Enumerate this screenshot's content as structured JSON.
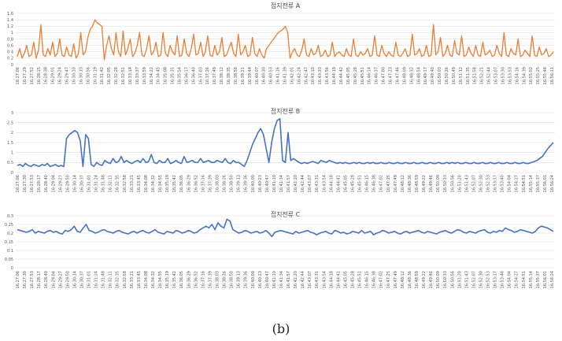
{
  "caption": "(b)",
  "chart_data": [
    {
      "type": "line",
      "title": "접지전류 A",
      "color": "#ED7D31",
      "ylim": [
        0,
        1.6
      ],
      "yticks": [
        "0",
        "0.2",
        "0.4",
        "0.6",
        "0.8",
        "1",
        "1.2",
        "1.4",
        "1.6"
      ],
      "grid": true,
      "x_ticks": [
        "16:27:06",
        "16:27:29",
        "16:27:52",
        "16:28:15",
        "16:28:38",
        "16:29:01",
        "16:29:24",
        "16:29:47",
        "16:30:10",
        "16:30:33",
        "16:30:56",
        "16:31:19",
        "16:31:42",
        "16:32:05",
        "16:32:28",
        "16:32:51",
        "16:33:14",
        "16:33:37",
        "16:33:59",
        "16:34:22",
        "16:34:45",
        "16:35:08",
        "16:35:31",
        "16:35:54",
        "16:36:17",
        "16:36:40",
        "16:37:03",
        "16:37:26",
        "16:37:49",
        "16:38:12",
        "16:38:35",
        "16:38:58",
        "16:39:21",
        "16:39:44",
        "16:40:07",
        "16:40:30",
        "16:40:53",
        "16:41:16",
        "16:41:39",
        "16:42:01",
        "16:42:24",
        "16:42:47",
        "16:43:10",
        "16:43:33",
        "16:43:56",
        "16:44:19",
        "16:44:42",
        "16:45:05",
        "16:45:28",
        "16:45:51",
        "16:46:14",
        "16:46:37",
        "16:47:00",
        "16:47:23",
        "16:47:46",
        "16:48:09",
        "16:48:32",
        "16:48:54",
        "16:49:17",
        "16:49:40",
        "16:50:03",
        "16:50:26",
        "16:50:49",
        "16:51:12",
        "16:51:35",
        "16:51:58",
        "16:52:21",
        "16:52:44",
        "16:53:07",
        "16:53:30",
        "16:53:53",
        "16:54:16",
        "16:54:39",
        "16:55:02",
        "16:55:25",
        "16:55:48",
        "16:56:11"
      ],
      "series": [
        {
          "values": [
            0.25,
            0.5,
            0.2,
            0.35,
            0.6,
            0.25,
            0.3,
            0.7,
            0.2,
            0.45,
            1.25,
            0.3,
            0.25,
            0.5,
            0.3,
            0.7,
            0.25,
            0.35,
            0.8,
            0.3,
            0.25,
            0.55,
            0.3,
            0.25,
            0.65,
            0.2,
            0.35,
            1.0,
            0.3,
            0.4,
            0.85,
            1.1,
            1.2,
            1.4,
            1.3,
            1.25,
            1.2,
            0.15,
            0.6,
            0.9,
            0.5,
            0.3,
            1.0,
            0.4,
            0.25,
            1.05,
            0.3,
            0.5,
            0.8,
            0.25,
            0.35,
            0.6,
            1.0,
            0.3,
            0.25,
            0.5,
            0.9,
            0.3,
            0.4,
            0.7,
            0.25,
            0.3,
            1.0,
            0.35,
            0.25,
            0.6,
            0.4,
            0.3,
            0.9,
            0.25,
            0.3,
            0.8,
            0.35,
            0.25,
            0.5,
            0.95,
            0.3,
            0.35,
            0.7,
            0.25,
            0.4,
            0.9,
            0.3,
            0.25,
            0.6,
            0.3,
            0.4,
            0.85,
            0.25,
            0.3,
            0.5,
            0.7,
            0.35,
            0.25,
            0.95,
            0.3,
            0.4,
            0.6,
            0.25,
            0.3,
            0.85,
            0.35,
            0.25,
            0.5,
            0.3,
            0.2,
            0.5,
            0.6,
            0.7,
            0.8,
            0.9,
            1.0,
            1.05,
            1.1,
            1.2,
            1.0,
            0.2,
            0.4,
            0.5,
            0.3,
            0.25,
            0.45,
            0.8,
            0.3,
            0.25,
            0.5,
            0.3,
            0.35,
            0.6,
            0.25,
            0.3,
            0.45,
            0.25,
            0.3,
            0.7,
            0.25,
            0.35,
            0.4,
            0.3,
            0.25,
            0.5,
            0.3,
            0.25,
            0.8,
            0.3,
            0.25,
            0.4,
            0.3,
            0.35,
            0.5,
            0.25,
            0.3,
            0.9,
            0.3,
            0.25,
            0.6,
            0.35,
            0.25,
            0.4,
            0.3,
            0.25,
            0.7,
            0.3,
            0.25,
            0.35,
            0.5,
            0.25,
            0.3,
            0.95,
            0.3,
            0.35,
            0.5,
            0.25,
            0.3,
            0.6,
            0.25,
            0.3,
            1.25,
            0.3,
            0.4,
            0.85,
            0.25,
            0.35,
            0.6,
            0.3,
            0.25,
            0.75,
            0.35,
            0.3,
            0.9,
            0.25,
            0.3,
            0.55,
            0.35,
            0.25,
            0.6,
            0.3,
            0.25,
            0.7,
            0.3,
            0.35,
            0.45,
            0.25,
            0.3,
            0.6,
            0.35,
            0.25,
            1.0,
            0.3,
            0.25,
            0.5,
            0.35,
            0.3,
            0.8,
            0.25,
            0.3,
            0.45,
            0.35,
            0.25,
            0.9,
            0.3,
            0.25,
            0.55,
            0.3,
            0.35,
            0.5,
            0.25,
            0.3,
            0.4
          ]
        }
      ]
    },
    {
      "type": "line",
      "title": "접지전류 B",
      "color": "#4472C4",
      "ylim": [
        0,
        3
      ],
      "yticks": [
        "0",
        "0.5",
        "1",
        "1.5",
        "2",
        "2.5",
        "3"
      ],
      "grid": true,
      "x_ticks": [
        "16:27:06",
        "16:27:30",
        "16:27:53",
        "16:28:17",
        "16:28:40",
        "16:29:04",
        "16:29:27",
        "16:29:50",
        "16:30:14",
        "16:30:37",
        "16:31:01",
        "16:31:24",
        "16:31:48",
        "16:32:11",
        "16:32:35",
        "16:32:58",
        "16:33:21",
        "16:33:45",
        "16:34:08",
        "16:34:32",
        "16:34:55",
        "16:35:19",
        "16:35:42",
        "16:36:05",
        "16:36:29",
        "16:36:52",
        "16:37:16",
        "16:37:39",
        "16:38:03",
        "16:38:26",
        "16:38:50",
        "16:39:13",
        "16:39:36",
        "16:40:00",
        "16:40:23",
        "16:40:47",
        "16:41:10",
        "16:41:34",
        "16:41:57",
        "16:42:20",
        "16:42:44",
        "16:43:07",
        "16:43:31",
        "16:43:54",
        "16:44:18",
        "16:44:41",
        "16:45:05",
        "16:45:28",
        "16:45:51",
        "16:46:15",
        "16:46:38",
        "16:47:02",
        "16:47:25",
        "16:47:49",
        "16:48:12",
        "16:48:36",
        "16:48:59",
        "16:49:22",
        "16:49:46",
        "16:50:09",
        "16:50:33",
        "16:50:56",
        "16:51:20",
        "16:51:43",
        "16:52:07",
        "16:52:30",
        "16:52:53",
        "16:53:17",
        "16:53:40",
        "16:54:04",
        "16:54:27",
        "16:54:51",
        "16:55:14",
        "16:55:37",
        "16:56:01",
        "16:56:24"
      ],
      "series": [
        {
          "values": [
            0.35,
            0.4,
            0.3,
            0.45,
            0.35,
            0.3,
            0.4,
            0.35,
            0.3,
            0.4,
            0.35,
            0.45,
            0.3,
            0.35,
            0.4,
            0.3,
            0.35,
            0.3,
            1.7,
            1.9,
            2.0,
            2.1,
            2.0,
            1.6,
            0.3,
            1.9,
            1.7,
            0.4,
            0.3,
            0.5,
            0.4,
            0.35,
            0.6,
            0.5,
            0.45,
            0.7,
            0.5,
            0.55,
            0.8,
            0.5,
            0.6,
            0.5,
            0.45,
            0.55,
            0.6,
            0.5,
            0.7,
            0.5,
            0.55,
            0.9,
            0.5,
            0.45,
            0.6,
            0.5,
            0.5,
            0.7,
            0.45,
            0.5,
            0.6,
            0.5,
            0.45,
            0.8,
            0.5,
            0.55,
            0.6,
            0.5,
            0.5,
            0.7,
            0.5,
            0.55,
            0.6,
            0.5,
            0.5,
            0.6,
            0.55,
            0.5,
            0.7,
            0.5,
            0.45,
            0.6,
            0.5,
            0.5,
            0.4,
            0.3,
            0.6,
            1.0,
            1.4,
            1.7,
            2.0,
            2.2,
            1.9,
            1.2,
            0.5,
            1.5,
            2.2,
            2.6,
            2.7,
            0.6,
            0.5,
            2.0,
            0.6,
            0.7,
            0.6,
            0.5,
            0.45,
            0.5,
            0.45,
            0.5,
            0.55,
            0.5,
            0.45,
            0.6,
            0.55,
            0.5,
            0.6,
            0.55,
            0.5,
            0.45,
            0.5,
            0.45,
            0.5,
            0.45,
            0.45,
            0.5,
            0.45,
            0.5,
            0.45,
            0.45,
            0.5,
            0.45,
            0.5,
            0.45,
            0.45,
            0.5,
            0.45,
            0.45,
            0.5,
            0.45,
            0.45,
            0.5,
            0.45,
            0.45,
            0.5,
            0.45,
            0.45,
            0.5,
            0.45,
            0.45,
            0.5,
            0.45,
            0.45,
            0.5,
            0.45,
            0.45,
            0.5,
            0.45,
            0.45,
            0.5,
            0.45,
            0.5,
            0.45,
            0.5,
            0.45,
            0.45,
            0.5,
            0.45,
            0.45,
            0.5,
            0.45,
            0.45,
            0.5,
            0.45,
            0.45,
            0.5,
            0.45,
            0.45,
            0.5,
            0.45,
            0.45,
            0.5,
            0.45,
            0.45,
            0.5,
            0.45,
            0.45,
            0.5,
            0.45,
            0.45,
            0.5,
            0.55,
            0.6,
            0.7,
            0.8,
            1.0,
            1.2,
            1.35,
            1.5
          ]
        }
      ]
    },
    {
      "type": "line",
      "title": "접지전류 C",
      "color": "#4472C4",
      "ylim": [
        0,
        0.3
      ],
      "yticks": [
        "0",
        "0.05",
        "0.1",
        "0.15",
        "0.2",
        "0.25",
        "0.3"
      ],
      "grid": true,
      "x_ticks": [
        "16:27:06",
        "16:27:30",
        "16:27:53",
        "16:28:17",
        "16:28:40",
        "16:29:04",
        "16:29:27",
        "16:29:50",
        "16:30:14",
        "16:30:37",
        "16:31:01",
        "16:31:24",
        "16:31:48",
        "16:32:11",
        "16:32:35",
        "16:32:58",
        "16:33:21",
        "16:33:45",
        "16:34:08",
        "16:34:32",
        "16:34:55",
        "16:35:19",
        "16:35:42",
        "16:36:05",
        "16:36:29",
        "16:36:52",
        "16:37:16",
        "16:37:39",
        "16:38:03",
        "16:38:26",
        "16:38:50",
        "16:39:13",
        "16:39:36",
        "16:40:00",
        "16:40:23",
        "16:40:47",
        "16:41:10",
        "16:41:34",
        "16:41:57",
        "16:42:20",
        "16:42:44",
        "16:43:07",
        "16:43:31",
        "16:43:54",
        "16:44:18",
        "16:44:41",
        "16:45:05",
        "16:45:28",
        "16:45:51",
        "16:46:15",
        "16:46:38",
        "16:47:02",
        "16:47:25",
        "16:47:49",
        "16:48:12",
        "16:48:36",
        "16:48:59",
        "16:49:22",
        "16:49:46",
        "16:50:09",
        "16:50:33",
        "16:50:56",
        "16:51:20",
        "16:51:43",
        "16:52:07",
        "16:52:30",
        "16:52:53",
        "16:53:17",
        "16:53:40",
        "16:54:04",
        "16:54:27",
        "16:54:51",
        "16:55:14",
        "16:55:37",
        "16:56:01",
        "16:56:24"
      ],
      "series": [
        {
          "values": [
            0.22,
            0.215,
            0.21,
            0.205,
            0.21,
            0.22,
            0.2,
            0.21,
            0.205,
            0.2,
            0.21,
            0.215,
            0.205,
            0.21,
            0.2,
            0.195,
            0.215,
            0.21,
            0.22,
            0.24,
            0.21,
            0.205,
            0.23,
            0.25,
            0.215,
            0.21,
            0.2,
            0.205,
            0.215,
            0.22,
            0.21,
            0.205,
            0.2,
            0.21,
            0.215,
            0.205,
            0.2,
            0.195,
            0.205,
            0.21,
            0.2,
            0.21,
            0.215,
            0.205,
            0.2,
            0.21,
            0.22,
            0.205,
            0.2,
            0.195,
            0.21,
            0.205,
            0.2,
            0.215,
            0.21,
            0.2,
            0.205,
            0.215,
            0.21,
            0.2,
            0.205,
            0.22,
            0.23,
            0.24,
            0.23,
            0.25,
            0.22,
            0.26,
            0.24,
            0.23,
            0.28,
            0.27,
            0.22,
            0.21,
            0.2,
            0.205,
            0.215,
            0.21,
            0.2,
            0.205,
            0.21,
            0.2,
            0.205,
            0.215,
            0.2,
            0.18,
            0.205,
            0.21,
            0.215,
            0.21,
            0.205,
            0.2,
            0.195,
            0.21,
            0.2,
            0.205,
            0.21,
            0.215,
            0.205,
            0.2,
            0.19,
            0.2,
            0.205,
            0.21,
            0.2,
            0.195,
            0.215,
            0.21,
            0.2,
            0.205,
            0.195,
            0.2,
            0.21,
            0.205,
            0.2,
            0.215,
            0.2,
            0.205,
            0.21,
            0.19,
            0.2,
            0.205,
            0.215,
            0.21,
            0.2,
            0.205,
            0.21,
            0.2,
            0.195,
            0.205,
            0.21,
            0.2,
            0.205,
            0.21,
            0.215,
            0.205,
            0.2,
            0.21,
            0.205,
            0.2,
            0.195,
            0.205,
            0.21,
            0.215,
            0.205,
            0.2,
            0.21,
            0.22,
            0.215,
            0.205,
            0.2,
            0.21,
            0.205,
            0.2,
            0.21,
            0.215,
            0.22,
            0.205,
            0.2,
            0.21,
            0.205,
            0.215,
            0.21,
            0.23,
            0.22,
            0.215,
            0.205,
            0.21,
            0.22,
            0.215,
            0.21,
            0.205,
            0.2,
            0.21,
            0.23,
            0.24,
            0.235,
            0.23,
            0.22,
            0.21
          ]
        }
      ]
    }
  ]
}
